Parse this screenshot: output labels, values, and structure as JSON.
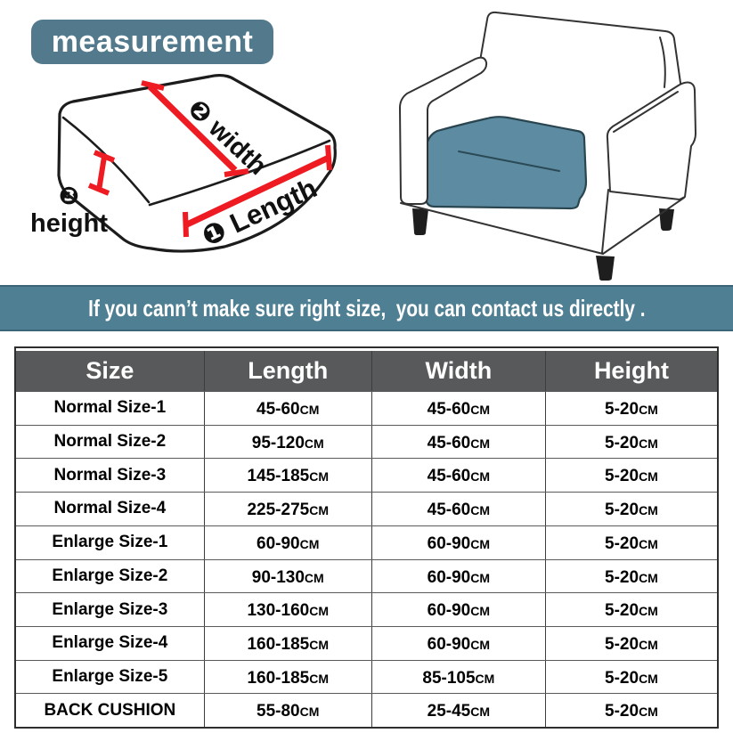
{
  "title_badge": {
    "label": "measurement"
  },
  "diagram": {
    "width_label": "❷ width",
    "length_label": "❶ Length",
    "height_number": "❸",
    "height_word": "height"
  },
  "banner": {
    "text": "If you cann’t make sure right size,  you can contact us directly ."
  },
  "size_table": {
    "columns": [
      "Size",
      "Length",
      "Width",
      "Height"
    ],
    "unit": "CM",
    "rows": [
      {
        "size": "Normal Size-1",
        "length": "45-60",
        "width": "45-60",
        "height": "5-20"
      },
      {
        "size": "Normal Size-2",
        "length": "95-120",
        "width": "45-60",
        "height": "5-20"
      },
      {
        "size": "Normal Size-3",
        "length": "145-185",
        "width": "45-60",
        "height": "5-20"
      },
      {
        "size": "Normal Size-4",
        "length": "225-275",
        "width": "45-60",
        "height": "5-20"
      },
      {
        "size": "Enlarge Size-1",
        "length": "60-90",
        "width": "60-90",
        "height": "5-20"
      },
      {
        "size": "Enlarge Size-2",
        "length": "90-130",
        "width": "60-90",
        "height": "5-20"
      },
      {
        "size": "Enlarge Size-3",
        "length": "130-160",
        "width": "60-90",
        "height": "5-20"
      },
      {
        "size": "Enlarge Size-4",
        "length": "160-185",
        "width": "60-90",
        "height": "5-20"
      },
      {
        "size": "Enlarge Size-5",
        "length": "160-185",
        "width": "85-105",
        "height": "5-20"
      },
      {
        "size": "BACK CUSHION",
        "length": "55-80",
        "width": "25-45",
        "height": "5-20"
      }
    ]
  },
  "colors": {
    "badge_bg": "#527a8c",
    "banner_bg": "#4f7f93",
    "table_header_bg": "#58595b",
    "measure_red": "#ee1b22",
    "cushion_blue": "#5d8ba2"
  }
}
